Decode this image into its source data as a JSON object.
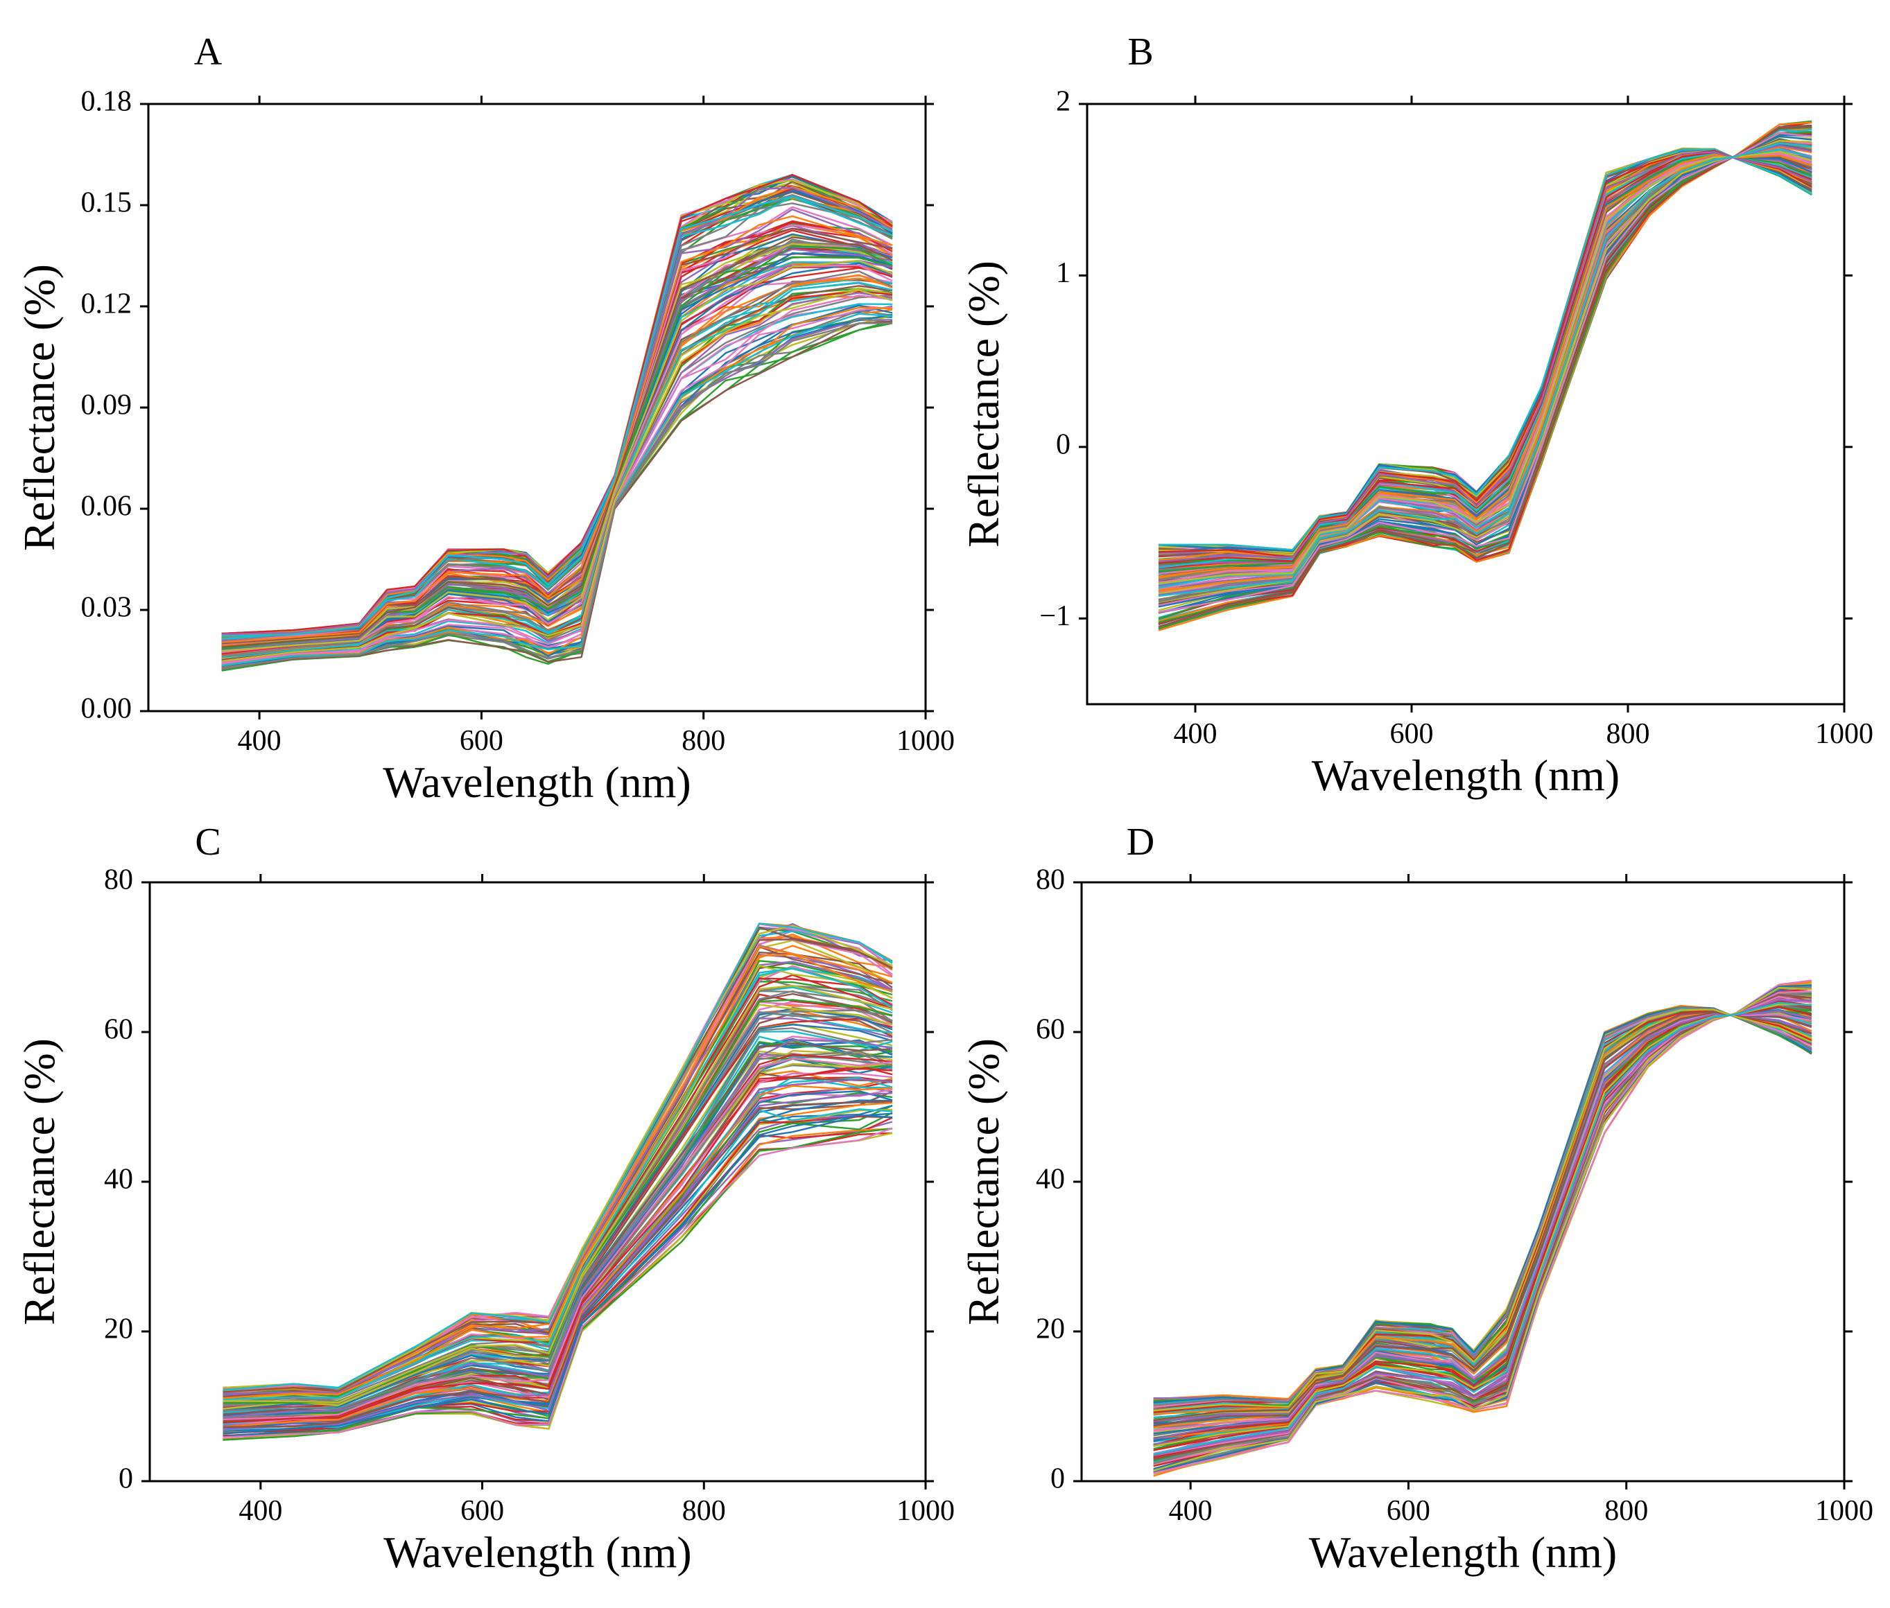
{
  "figure": {
    "panels": [
      "A",
      "B",
      "C",
      "D"
    ]
  },
  "palette": [
    "#1f77b4",
    "#ff7f0e",
    "#2ca02c",
    "#d62728",
    "#9467bd",
    "#8c564b",
    "#e377c2",
    "#7f7f7f",
    "#bcbd22",
    "#17becf"
  ],
  "chart_data": [
    {
      "panel": "A",
      "type": "line",
      "xlabel": "Wavelength (nm)",
      "ylabel": "Reflectance (%)",
      "xlim": [
        300,
        1000
      ],
      "ylim": [
        0,
        0.18
      ],
      "xticks": [
        400,
        600,
        800,
        1000
      ],
      "yticks": [
        0.0,
        0.03,
        0.06,
        0.09,
        0.12,
        0.15,
        0.18
      ],
      "ytick_labels": [
        "0.00",
        "0.03",
        "0.06",
        "0.09",
        "0.12",
        "0.15",
        "0.18"
      ],
      "x": [
        366,
        430,
        490,
        515,
        540,
        570,
        620,
        640,
        660,
        690,
        720,
        780,
        820,
        850,
        880,
        940,
        970
      ],
      "series_min": [
        0.012,
        0.015,
        0.016,
        0.018,
        0.019,
        0.021,
        0.018,
        0.016,
        0.014,
        0.016,
        0.06,
        0.085,
        0.095,
        0.1,
        0.105,
        0.113,
        0.114
      ],
      "series_max": [
        0.023,
        0.024,
        0.026,
        0.036,
        0.037,
        0.048,
        0.048,
        0.047,
        0.041,
        0.05,
        0.07,
        0.147,
        0.152,
        0.156,
        0.159,
        0.151,
        0.145
      ],
      "pivot_x": 720,
      "series_count": 120,
      "grid": false,
      "legend": "none"
    },
    {
      "panel": "B",
      "type": "line",
      "xlabel": "Wavelength (nm)",
      "ylabel": "Reflectance (%)",
      "xlim": [
        300,
        1000
      ],
      "ylim": [
        -1.5,
        2
      ],
      "xticks": [
        400,
        600,
        800,
        1000
      ],
      "yticks": [
        -1,
        0,
        1,
        2
      ],
      "ytick_labels": [
        "−1",
        "0",
        "1",
        "2"
      ],
      "x": [
        366,
        430,
        490,
        515,
        540,
        570,
        620,
        640,
        660,
        690,
        720,
        780,
        820,
        850,
        880,
        900,
        940,
        970
      ],
      "series_min": [
        -1.07,
        -0.95,
        -0.87,
        -0.62,
        -0.58,
        -0.52,
        -0.58,
        -0.6,
        -0.67,
        -0.62,
        -0.1,
        0.98,
        1.35,
        1.52,
        1.63,
        1.68,
        1.58,
        1.47
      ],
      "series_max": [
        -0.57,
        -0.57,
        -0.6,
        -0.4,
        -0.38,
        -0.1,
        -0.12,
        -0.15,
        -0.26,
        -0.05,
        0.35,
        1.6,
        1.68,
        1.74,
        1.74,
        1.7,
        1.88,
        1.9
      ],
      "pivot_x": 740,
      "series_count": 120,
      "grid": false,
      "legend": "none"
    },
    {
      "panel": "C",
      "type": "line",
      "xlabel": "Wavelength (nm)",
      "ylabel": "Reflectance (%)",
      "xlim": [
        300,
        1000
      ],
      "ylim": [
        0,
        80
      ],
      "xticks": [
        400,
        600,
        800,
        1000
      ],
      "yticks": [
        0,
        20,
        40,
        60,
        80
      ],
      "ytick_labels": [
        "0",
        "20",
        "40",
        "60",
        "80"
      ],
      "x": [
        366,
        430,
        470,
        540,
        590,
        630,
        660,
        690,
        780,
        850,
        880,
        940,
        970
      ],
      "series_min": [
        5.5,
        6.0,
        6.5,
        9.0,
        9.0,
        7.5,
        7.0,
        20.0,
        32.0,
        43.5,
        44.5,
        45.5,
        46.5
      ],
      "series_max": [
        12.5,
        13.0,
        12.5,
        18.0,
        22.5,
        22.5,
        22.0,
        31.0,
        55.0,
        74.5,
        74.5,
        72.0,
        69.5
      ],
      "pivot_x": 690,
      "series_count": 120,
      "grid": false,
      "legend": "none"
    },
    {
      "panel": "D",
      "type": "line",
      "xlabel": "Wavelength (nm)",
      "ylabel": "Reflectance (%)",
      "xlim": [
        300,
        1000
      ],
      "ylim": [
        0,
        80
      ],
      "xticks": [
        400,
        600,
        800,
        1000
      ],
      "yticks": [
        0,
        20,
        40,
        60,
        80
      ],
      "ytick_labels": [
        "0",
        "20",
        "40",
        "60",
        "80"
      ],
      "x": [
        366,
        430,
        490,
        515,
        540,
        570,
        620,
        640,
        660,
        690,
        720,
        780,
        820,
        850,
        880,
        900,
        940,
        970
      ],
      "series_min": [
        0.3,
        3.0,
        5.0,
        10.0,
        11.0,
        12.0,
        10.5,
        10.0,
        9.0,
        10.0,
        24.0,
        46.5,
        55.0,
        59.0,
        61.5,
        62.0,
        59.5,
        57.0
      ],
      "series_max": [
        11.2,
        11.5,
        11.0,
        15.0,
        15.5,
        21.5,
        21.0,
        20.5,
        17.5,
        23.0,
        34.0,
        60.0,
        62.5,
        63.5,
        63.2,
        62.5,
        66.5,
        67.0
      ],
      "pivot_x": 740,
      "series_count": 120,
      "grid": false,
      "legend": "none"
    }
  ]
}
